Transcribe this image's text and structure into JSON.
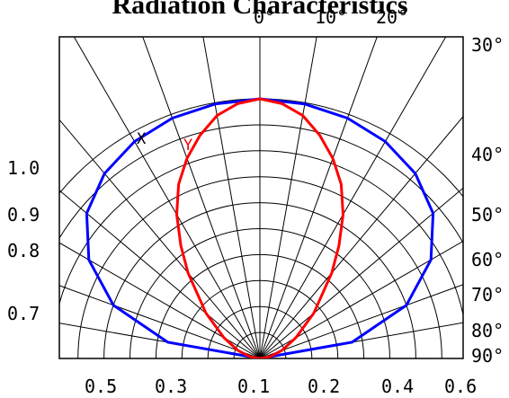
{
  "chart_data": {
    "type": "polar",
    "title": "Radiation Characteristics",
    "angle_ticks_top": [
      "0°",
      "10°",
      "20°"
    ],
    "angle_ticks_right": [
      "30°",
      "40°",
      "50°",
      "60°",
      "70°",
      "80°",
      "90°"
    ],
    "intensity_ticks_left": [
      "1.0",
      "0.9",
      "0.8",
      "0.7"
    ],
    "bottom_ticks": [
      "0.5",
      "0.3",
      "0.1",
      "0.2",
      "0.4",
      "0.6"
    ],
    "angle_step_deg": 10,
    "radial_levels": [
      0.1,
      0.2,
      0.3,
      0.4,
      0.5,
      0.6,
      0.7,
      0.8,
      0.9,
      1.0
    ],
    "grid": true,
    "series": [
      {
        "name": "X",
        "color": "#0000ff",
        "angles": [
          0,
          10,
          20,
          30,
          40,
          50,
          60,
          70,
          80,
          90
        ],
        "values": [
          1.0,
          0.995,
          0.985,
          0.965,
          0.93,
          0.87,
          0.76,
          0.6,
          0.36,
          0.0
        ]
      },
      {
        "name": "Y",
        "color": "#ff0000",
        "angles": [
          0,
          5,
          10,
          15,
          20,
          25,
          30,
          35,
          40,
          50,
          60,
          70,
          80,
          90
        ],
        "values": [
          1.0,
          0.985,
          0.95,
          0.89,
          0.82,
          0.74,
          0.64,
          0.53,
          0.43,
          0.27,
          0.16,
          0.09,
          0.04,
          0.0
        ]
      }
    ]
  }
}
